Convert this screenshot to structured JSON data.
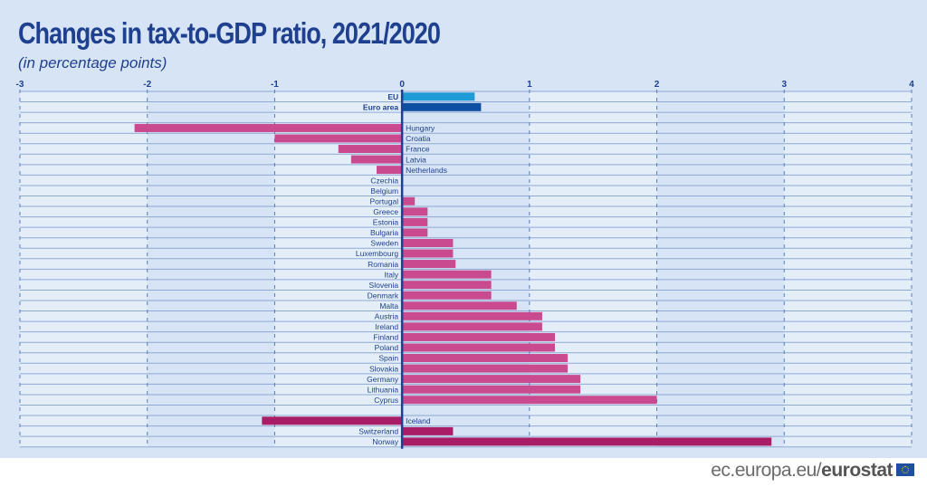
{
  "chart_data": {
    "type": "bar",
    "orientation": "horizontal",
    "title": "Changes in tax-to-GDP ratio, 2021/2020",
    "subtitle": "(in percentage points)",
    "xlabel": "",
    "ylabel": "",
    "xlim": [
      -3,
      4
    ],
    "xticks": [
      "-3",
      "-2",
      "-1",
      "0",
      "1",
      "2",
      "3",
      "4"
    ],
    "grid": true,
    "legend": "none",
    "colors": {
      "eu": "#1e9ad6",
      "euro_area": "#0d4fa0",
      "member": "#c94a8e",
      "efta": "#a91c66",
      "axis": "#1f3f8f"
    },
    "groups": [
      {
        "name": "aggregates",
        "items": [
          {
            "label": "EU",
            "value": 0.57,
            "color_key": "eu",
            "bold": true
          },
          {
            "label": "Euro area",
            "value": 0.62,
            "color_key": "euro_area",
            "bold": true
          }
        ]
      },
      {
        "name": "member_states",
        "items": [
          {
            "label": "Hungary",
            "value": -2.1,
            "color_key": "member"
          },
          {
            "label": "Croatia",
            "value": -1.0,
            "color_key": "member"
          },
          {
            "label": "France",
            "value": -0.5,
            "color_key": "member"
          },
          {
            "label": "Latvia",
            "value": -0.4,
            "color_key": "member"
          },
          {
            "label": "Netherlands",
            "value": -0.2,
            "color_key": "member"
          },
          {
            "label": "Czechia",
            "value": 0.0,
            "color_key": "member"
          },
          {
            "label": "Belgium",
            "value": 0.0,
            "color_key": "member"
          },
          {
            "label": "Portugal",
            "value": 0.1,
            "color_key": "member"
          },
          {
            "label": "Greece",
            "value": 0.2,
            "color_key": "member"
          },
          {
            "label": "Estonia",
            "value": 0.2,
            "color_key": "member"
          },
          {
            "label": "Bulgaria",
            "value": 0.2,
            "color_key": "member"
          },
          {
            "label": "Sweden",
            "value": 0.4,
            "color_key": "member"
          },
          {
            "label": "Luxembourg",
            "value": 0.4,
            "color_key": "member"
          },
          {
            "label": "Romania",
            "value": 0.42,
            "color_key": "member"
          },
          {
            "label": "Italy",
            "value": 0.7,
            "color_key": "member"
          },
          {
            "label": "Slovenia",
            "value": 0.7,
            "color_key": "member"
          },
          {
            "label": "Denmark",
            "value": 0.7,
            "color_key": "member"
          },
          {
            "label": "Malta",
            "value": 0.9,
            "color_key": "member"
          },
          {
            "label": "Austria",
            "value": 1.1,
            "color_key": "member"
          },
          {
            "label": "Ireland",
            "value": 1.1,
            "color_key": "member"
          },
          {
            "label": "Finland",
            "value": 1.2,
            "color_key": "member"
          },
          {
            "label": "Poland",
            "value": 1.2,
            "color_key": "member"
          },
          {
            "label": "Spain",
            "value": 1.3,
            "color_key": "member"
          },
          {
            "label": "Slovakia",
            "value": 1.3,
            "color_key": "member"
          },
          {
            "label": "Germany",
            "value": 1.4,
            "color_key": "member"
          },
          {
            "label": "Lithuania",
            "value": 1.4,
            "color_key": "member"
          },
          {
            "label": "Cyprus",
            "value": 2.0,
            "color_key": "member"
          }
        ]
      },
      {
        "name": "efta",
        "items": [
          {
            "label": "Iceland",
            "value": -1.1,
            "color_key": "efta"
          },
          {
            "label": "Switzerland",
            "value": 0.4,
            "color_key": "efta"
          },
          {
            "label": "Norway",
            "value": 2.9,
            "color_key": "efta"
          }
        ]
      }
    ]
  },
  "footer": {
    "site": "ec.europa.eu/",
    "brand": "eurostat",
    "flag_icon": "eu-flag-icon"
  }
}
